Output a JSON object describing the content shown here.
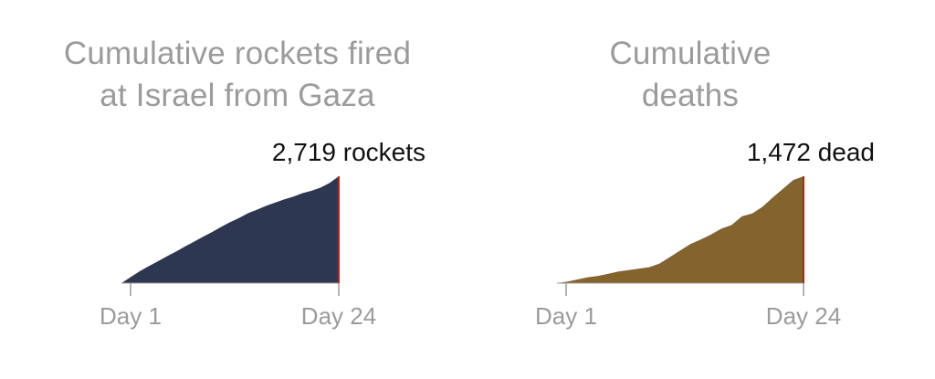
{
  "colors": {
    "title": "#9b9b9b",
    "tick_label": "#9b9b9b",
    "axis": "#9b9b9b",
    "end_line": "#b3261e",
    "annotation": "#111111"
  },
  "chart_data": [
    {
      "type": "area",
      "title_lines": [
        "Cumulative rockets fired",
        "at Israel from Gaza"
      ],
      "annotation": "2,719 rockets",
      "color": "#2e3752",
      "tick_labels": [
        "Day 1",
        "Day 24"
      ],
      "xlim": [
        0,
        24
      ],
      "ylim": [
        0,
        2719
      ],
      "x": [
        0,
        1,
        2,
        3,
        4,
        5,
        6,
        7,
        8,
        9,
        10,
        11,
        12,
        13,
        14,
        15,
        16,
        17,
        18,
        19,
        20,
        21,
        22,
        23,
        24
      ],
      "values": [
        0,
        150,
        300,
        430,
        550,
        680,
        800,
        930,
        1050,
        1180,
        1300,
        1430,
        1550,
        1660,
        1780,
        1870,
        1970,
        2050,
        2130,
        2200,
        2290,
        2350,
        2430,
        2550,
        2719
      ]
    },
    {
      "type": "area",
      "title_lines": [
        "Cumulative",
        "deaths"
      ],
      "annotation": "1,472 dead",
      "color": "#84632d",
      "tick_labels": [
        "Day 1",
        "Day 24"
      ],
      "xlim": [
        0,
        24
      ],
      "ylim": [
        0,
        1472
      ],
      "x": [
        0,
        1,
        2,
        3,
        4,
        5,
        6,
        7,
        8,
        9,
        10,
        11,
        12,
        13,
        14,
        15,
        16,
        17,
        18,
        19,
        20,
        21,
        22,
        23,
        24
      ],
      "values": [
        0,
        20,
        50,
        80,
        100,
        130,
        160,
        180,
        200,
        220,
        270,
        360,
        450,
        540,
        600,
        670,
        750,
        800,
        920,
        960,
        1050,
        1180,
        1300,
        1420,
        1472
      ]
    }
  ]
}
